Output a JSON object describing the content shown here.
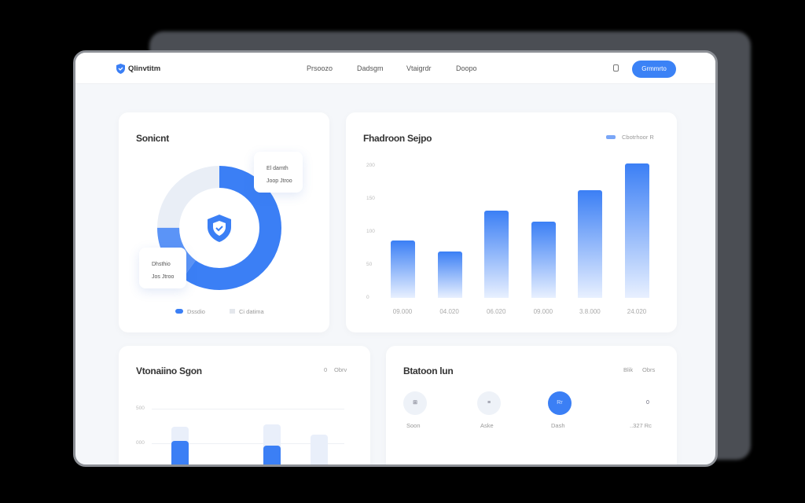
{
  "nav": {
    "brand": "Qlinvtitm",
    "links": [
      "Prsoozo",
      "Dadsgm",
      "Vtaigrdr",
      "Doopo"
    ],
    "cta": "Grmmrto"
  },
  "donut_card": {
    "title": "Sonicnt",
    "tip1": [
      "El damth",
      "Joop Jtroo"
    ],
    "tip2": [
      "Dhsthio",
      "Jos Jtroo"
    ],
    "legend": [
      "Dssdio",
      "Ci datima"
    ],
    "colors": {
      "primary": "#3b7ff5",
      "secondary": "#5b94f7",
      "track": "#e9eef6"
    },
    "segments": [
      0.6,
      0.15,
      0.25
    ]
  },
  "bar_card": {
    "title": "Fhadroon Sejpo",
    "legend": "Cbotrhoor R"
  },
  "chart_data": {
    "type": "bar",
    "categories": [
      "09.000",
      "04.020",
      "06.020",
      "09.000",
      "3.8.000",
      "24.020"
    ],
    "values": [
      87,
      70,
      132,
      115,
      163,
      204
    ],
    "yticks": [
      "200",
      "150",
      "100",
      "50",
      "0"
    ],
    "ylim": [
      0,
      200
    ],
    "color": "#3b7ff5"
  },
  "bottom_left": {
    "title": "Vtonaiino Sgon",
    "badge": "0",
    "action": "Obrv",
    "yticks": [
      "500",
      "000"
    ],
    "bars": [
      {
        "bg": 0.9,
        "fg": 0.66
      },
      {
        "bg": 0.25,
        "fg": 0
      },
      {
        "bg": 0.94,
        "fg": 0.57
      },
      {
        "bg": 0.76,
        "fg": 0
      }
    ]
  },
  "bottom_right": {
    "title": "Btatoon lun",
    "actions": [
      "Blik",
      "Obrs"
    ],
    "steps": [
      {
        "icon": "grid-icon",
        "glyph": "⊞",
        "label": "Soon"
      },
      {
        "icon": "list-icon",
        "glyph": "≡",
        "label": "Aske"
      },
      {
        "icon": "active-step",
        "glyph": "Rr",
        "label": "Dash"
      },
      {
        "icon": "",
        "glyph": "0",
        "label": "..327 Rc"
      }
    ]
  }
}
